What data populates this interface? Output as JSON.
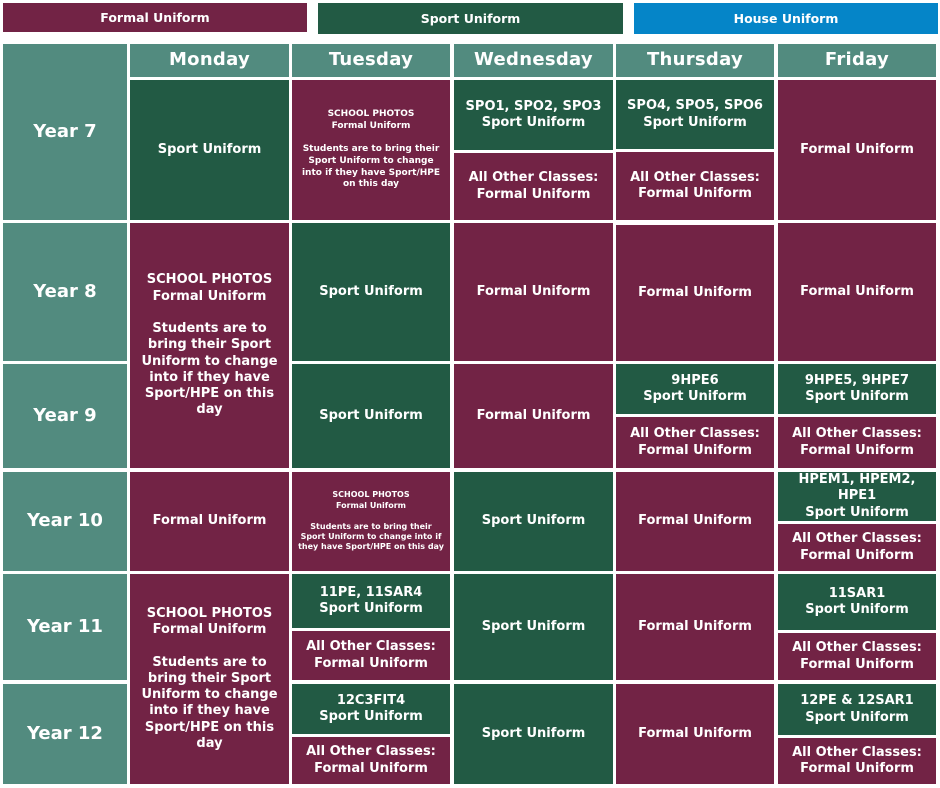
{
  "colors": {
    "formal": "#722345",
    "sport": "#225a44",
    "house": "#0585c8",
    "header": "#528b7f"
  },
  "legend": {
    "formal": "Formal Uniform",
    "sport": "Sport Uniform",
    "house": "House Uniform"
  },
  "days": [
    "Monday",
    "Tuesday",
    "Wednesday",
    "Thursday",
    "Friday"
  ],
  "years": [
    "Year 7",
    "Year 8",
    "Year 9",
    "Year 10",
    "Year 11",
    "Year 12"
  ],
  "text": {
    "formal": "Formal Uniform",
    "sport": "Sport Uniform",
    "other": "All Other Classes:\nFormal  Uniform",
    "photos": "SCHOOL PHOTOS\nFormal Uniform\n\nStudents are to bring their Sport Uniform to change into if they have Sport/HPE on this day",
    "photos_y7": "SCHOOL PHOTOS\nFormal Uniform\n\nStudents are to bring their Sport Uniform to change into if they have Sport/HPE on this day",
    "photos_y10": "SCHOOL PHOTOS\nFormal Uniform\n\nStudents are to bring their Sport Uniform to change into if they have Sport/HPE on this day",
    "y7_wed_sport": "SPO1, SPO2, SPO3\nSport Uniform",
    "y7_thu_sport": "SPO4, SPO5, SPO6\nSport Uniform",
    "y9_thu_sport": "9HPE6\nSport Uniform",
    "y9_fri_sport": "9HPE5, 9HPE7\nSport Uniform",
    "y10_fri_sport": "HPEM1, HPEM2, HPE1\nSport Uniform",
    "y11_tue_sport": "11PE, 11SAR4\nSport Uniform",
    "y11_fri_sport": "11SAR1\nSport Uniform",
    "y12_tue_sport": "12C3FIT4\nSport Uniform",
    "y12_fri_sport": "12PE & 12SAR1\nSport Uniform"
  }
}
